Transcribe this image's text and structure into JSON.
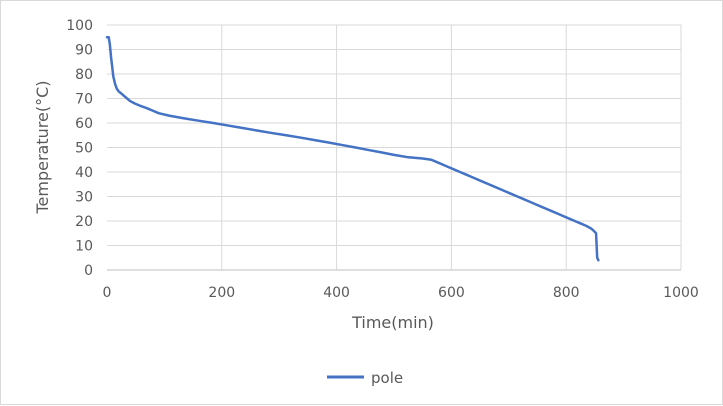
{
  "chart_data": {
    "type": "line",
    "title": "",
    "xlabel": "Time(min)",
    "ylabel": "Temperature(°C)",
    "xlim": [
      0,
      1000
    ],
    "ylim": [
      0,
      100
    ],
    "xticks": [
      0,
      200,
      400,
      600,
      800,
      1000
    ],
    "yticks": [
      0,
      10,
      20,
      30,
      40,
      50,
      60,
      70,
      80,
      90,
      100
    ],
    "xtick_labels": [
      "0",
      "200",
      "400",
      "600",
      "800",
      "1000"
    ],
    "ytick_labels": [
      "0",
      "10",
      "20",
      "30",
      "40",
      "50",
      "60",
      "70",
      "80",
      "90",
      "100"
    ],
    "grid": true,
    "legend_position": "bottom",
    "series": [
      {
        "name": "pole",
        "color": "#4472c4",
        "points": [
          [
            0,
            95
          ],
          [
            3,
            95
          ],
          [
            5,
            92
          ],
          [
            7,
            87
          ],
          [
            9,
            83
          ],
          [
            11,
            79
          ],
          [
            14,
            76
          ],
          [
            17,
            74
          ],
          [
            20,
            73
          ],
          [
            25,
            72
          ],
          [
            30,
            71
          ],
          [
            35,
            70
          ],
          [
            40,
            69
          ],
          [
            48,
            68
          ],
          [
            58,
            67
          ],
          [
            70,
            66
          ],
          [
            80,
            65
          ],
          [
            90,
            64
          ],
          [
            108,
            63
          ],
          [
            132,
            62
          ],
          [
            158,
            61
          ],
          [
            185,
            60
          ],
          [
            210,
            59
          ],
          [
            235,
            58
          ],
          [
            260,
            57
          ],
          [
            285,
            56
          ],
          [
            312,
            55
          ],
          [
            338,
            54
          ],
          [
            362,
            53
          ],
          [
            387,
            52
          ],
          [
            410,
            51
          ],
          [
            433,
            50
          ],
          [
            455,
            49
          ],
          [
            478,
            48
          ],
          [
            500,
            47
          ],
          [
            525,
            46
          ],
          [
            550,
            45.5
          ],
          [
            565,
            45
          ],
          [
            575,
            44
          ],
          [
            585,
            43
          ],
          [
            595,
            42
          ],
          [
            605,
            41
          ],
          [
            615,
            40
          ],
          [
            625,
            39
          ],
          [
            635,
            38
          ],
          [
            645,
            37
          ],
          [
            655,
            36
          ],
          [
            665,
            35
          ],
          [
            675,
            34
          ],
          [
            685,
            33
          ],
          [
            695,
            32
          ],
          [
            705,
            31
          ],
          [
            715,
            30
          ],
          [
            725,
            29
          ],
          [
            735,
            28
          ],
          [
            745,
            27
          ],
          [
            755,
            26
          ],
          [
            765,
            25
          ],
          [
            775,
            24
          ],
          [
            785,
            23
          ],
          [
            795,
            22
          ],
          [
            805,
            21
          ],
          [
            815,
            20
          ],
          [
            825,
            19
          ],
          [
            835,
            18
          ],
          [
            843,
            17
          ],
          [
            848,
            16
          ],
          [
            852,
            15
          ],
          [
            853,
            10
          ],
          [
            854,
            5
          ],
          [
            856,
            4
          ]
        ]
      }
    ]
  }
}
